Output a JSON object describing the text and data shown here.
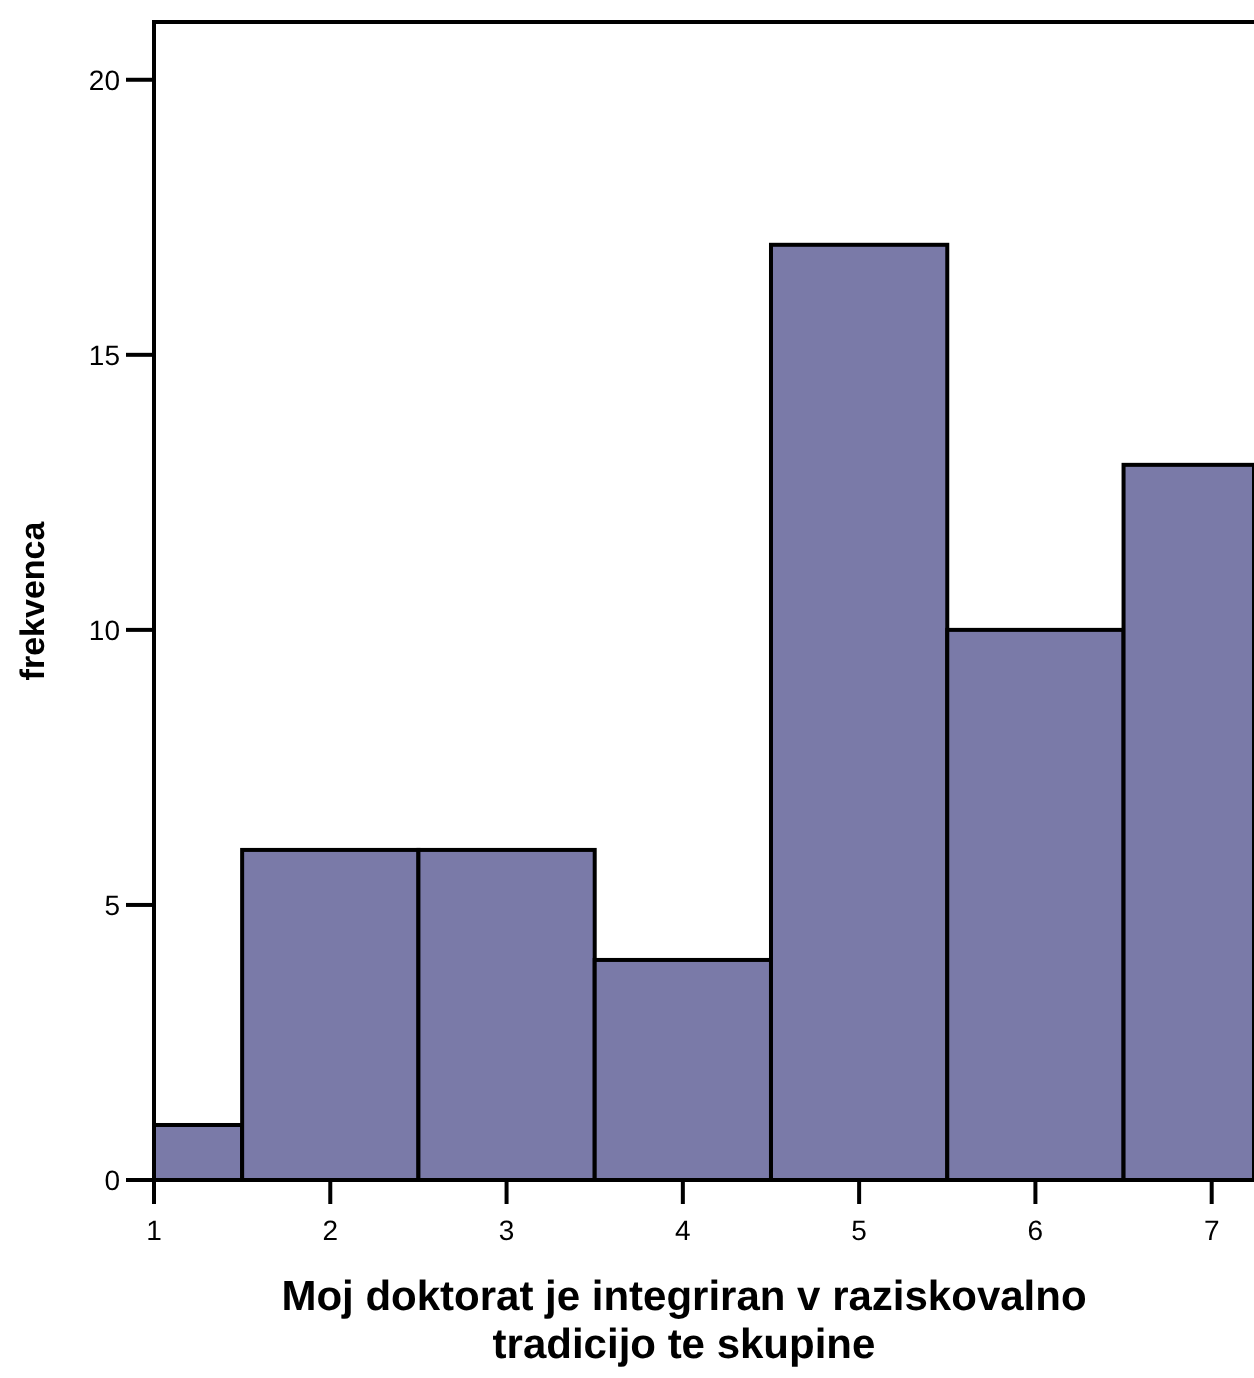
{
  "chart_data": {
    "type": "histogram",
    "xlabel": "Moj doktorat je integriran v raziskovalno tradicijo te skupine",
    "ylabel": "frekvenca",
    "bins": [
      1,
      1.5,
      2.5,
      3.5,
      4.5,
      5.5,
      6.5,
      7.24
    ],
    "values": [
      1,
      6,
      6,
      4,
      17,
      10,
      13
    ],
    "color": "#7a7aa8",
    "xlim": [
      1,
      7.24
    ],
    "xticks": [
      1,
      2,
      3,
      4,
      5,
      6,
      7
    ],
    "ylim": [
      0,
      21.05
    ],
    "yticks": [
      0,
      5,
      10,
      15,
      20
    ],
    "grid": false
  }
}
